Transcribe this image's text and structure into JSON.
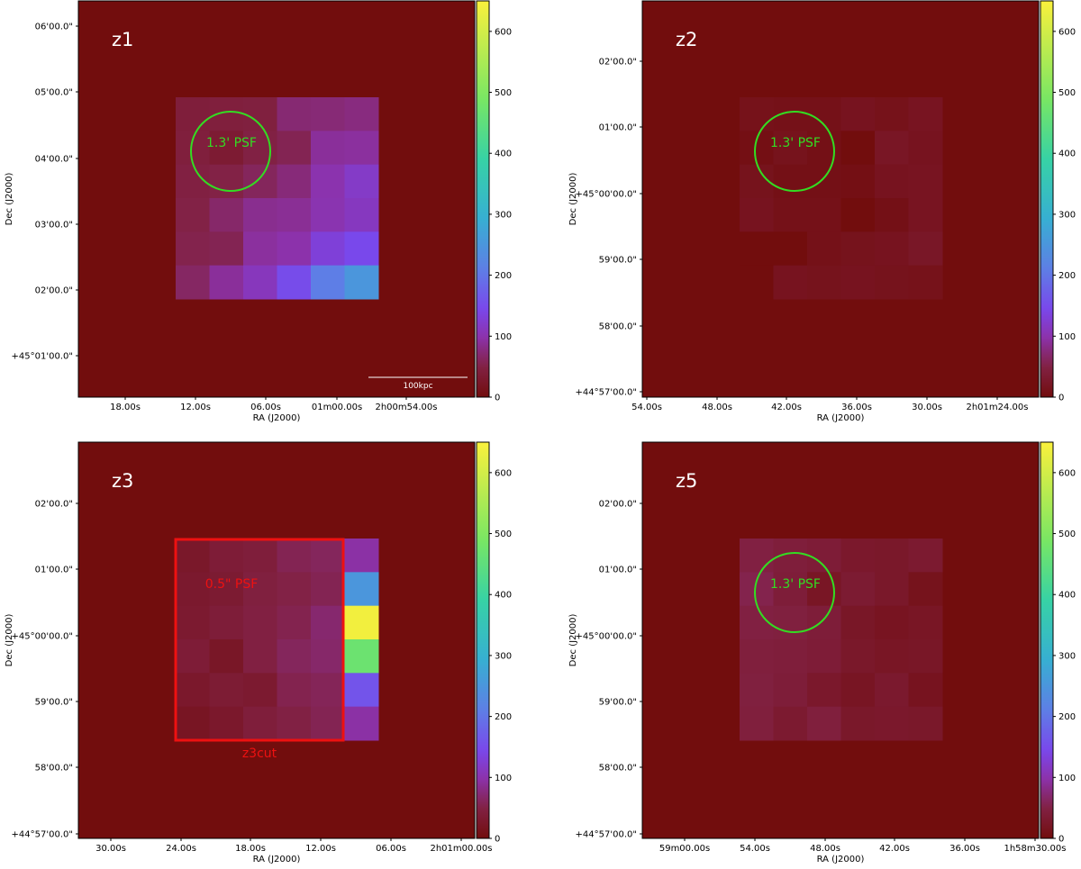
{
  "colors": {
    "background": "#720d0d",
    "psf_circle": "#33dd22",
    "cut_box": "#ee1111"
  },
  "colorbar": {
    "min": 0,
    "max": 650,
    "ticks": [
      "0",
      "100",
      "200",
      "300",
      "400",
      "500",
      "600"
    ]
  },
  "chart_data": [
    {
      "type": "heatmap",
      "panel_label": "z1",
      "xlabel": "RA (J2000)",
      "ylabel": "Dec (J2000)",
      "xticks": [
        "18.00s",
        "12.00s",
        "06.00s",
        "01m00.00s",
        "2h00m54.00s"
      ],
      "yticks": [
        "06'00.0\"",
        "05'00.0\"",
        "04'00.0\"",
        "03'00.0\"",
        "02'00.0\"",
        "+45°01'00.0\""
      ],
      "psf_label": "1.3' PSF",
      "scalebar_label": "100kpc",
      "values": [
        [
          42,
          44,
          46,
          72,
          74,
          78
        ],
        [
          44,
          35,
          50,
          58,
          90,
          92
        ],
        [
          48,
          52,
          62,
          75,
          100,
          118
        ],
        [
          52,
          68,
          85,
          88,
          102,
          112
        ],
        [
          55,
          58,
          92,
          98,
          130,
          145
        ],
        [
          65,
          90,
          110,
          150,
          210,
          250
        ]
      ]
    },
    {
      "type": "heatmap",
      "panel_label": "z2",
      "xlabel": "RA (J2000)",
      "ylabel": "Dec (J2000)",
      "xticks": [
        "54.00s",
        "48.00s",
        "42.00s",
        "36.00s",
        "30.00s",
        "2h01m24.00s"
      ],
      "yticks": [
        "02'00.0\"",
        "01'00.0\"",
        "+45°00'00.0\"",
        "59'00.0\"",
        "58'00.0\"",
        "+44°57'00.0\""
      ],
      "psf_label": "1.3' PSF",
      "values": [
        [
          12,
          10,
          10,
          16,
          12,
          18
        ],
        [
          6,
          14,
          8,
          0,
          22,
          16
        ],
        [
          14,
          8,
          8,
          6,
          16,
          18
        ],
        [
          16,
          10,
          10,
          0,
          8,
          18
        ],
        [
          0,
          0,
          10,
          14,
          16,
          24
        ],
        [
          0,
          16,
          14,
          16,
          14,
          12
        ]
      ]
    },
    {
      "type": "heatmap",
      "panel_label": "z3",
      "xlabel": "RA (J2000)",
      "ylabel": "Dec (J2000)",
      "xticks": [
        "30.00s",
        "24.00s",
        "18.00s",
        "12.00s",
        "06.00s",
        "2h01m00.00s"
      ],
      "yticks": [
        "02'00.0\"",
        "01'00.0\"",
        "+45°00'00.0\"",
        "59'00.0\"",
        "58'00.0\"",
        "+44°57'00.0\""
      ],
      "psf_label": "0.5\" PSF",
      "cut_label": "z3cut",
      "values": [
        [
          26,
          38,
          42,
          58,
          62,
          95
        ],
        [
          30,
          34,
          46,
          52,
          58,
          250
        ],
        [
          32,
          40,
          48,
          56,
          70,
          640
        ],
        [
          38,
          24,
          48,
          62,
          68,
          470
        ],
        [
          28,
          36,
          32,
          56,
          60,
          160
        ],
        [
          20,
          28,
          42,
          50,
          58,
          95
        ]
      ]
    },
    {
      "type": "heatmap",
      "panel_label": "z5",
      "xlabel": "RA (J2000)",
      "ylabel": "Dec (J2000)",
      "xticks": [
        "59m00.00s",
        "54.00s",
        "48.00s",
        "42.00s",
        "36.00s",
        "1h58m30.00s"
      ],
      "yticks": [
        "02'00.0\"",
        "01'00.0\"",
        "+45°00'00.0\"",
        "59'00.0\"",
        "58'00.0\"",
        "+44°57'00.0\""
      ],
      "psf_label": "1.3' PSF",
      "values": [
        [
          48,
          42,
          38,
          28,
          26,
          32
        ],
        [
          55,
          40,
          22,
          34,
          26,
          14
        ],
        [
          48,
          46,
          40,
          24,
          18,
          22
        ],
        [
          44,
          42,
          38,
          26,
          22,
          24
        ],
        [
          46,
          40,
          28,
          20,
          30,
          16
        ],
        [
          44,
          32,
          44,
          26,
          28,
          26
        ]
      ]
    }
  ]
}
